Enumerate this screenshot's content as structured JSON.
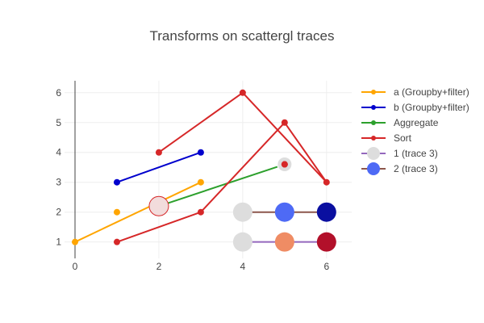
{
  "chart_data": {
    "type": "scatter",
    "title": "Transforms on scattergl traces",
    "xlabel": "",
    "ylabel": "",
    "xlim": [
      -0.25,
      6.6
    ],
    "ylim": [
      0.45,
      6.4
    ],
    "xticks": [
      0,
      2,
      4,
      6
    ],
    "yticks": [
      1,
      2,
      3,
      4,
      5,
      6
    ],
    "grid": true,
    "legend_position": "right",
    "series": [
      {
        "name": "a (Groupby+filter)",
        "mode": "lines+markers",
        "color": "#ffa500",
        "line": [
          {
            "x": 0,
            "y": 1
          },
          {
            "x": 3,
            "y": 3
          }
        ],
        "points": [
          {
            "x": 0,
            "y": 1
          },
          {
            "x": 1,
            "y": 2
          },
          {
            "x": 3,
            "y": 3
          }
        ]
      },
      {
        "name": "b (Groupby+filter)",
        "mode": "lines+markers",
        "color": "#0000cd",
        "line": [
          {
            "x": 1,
            "y": 3
          },
          {
            "x": 3,
            "y": 4
          }
        ],
        "points": [
          {
            "x": 1,
            "y": 3
          },
          {
            "x": 3,
            "y": 4
          }
        ]
      },
      {
        "name": "Aggregate",
        "mode": "lines+markers",
        "color": "#2ca02c",
        "line": [
          {
            "x": 2,
            "y": 2.2
          },
          {
            "x": 5,
            "y": 3.6
          }
        ],
        "points": [
          {
            "x": 2,
            "y": 2.2,
            "size": 24,
            "fill": "#f2dcdc",
            "stroke": "#d62728"
          },
          {
            "x": 5,
            "y": 3.6,
            "size": 18,
            "fill": "#dddddd",
            "stroke": "#ffffff"
          }
        ]
      },
      {
        "name": "Sort",
        "mode": "lines+markers",
        "color": "#d62728",
        "line": [
          {
            "x": 1,
            "y": 1
          },
          {
            "x": 3,
            "y": 2
          },
          {
            "x": 5,
            "y": 5
          },
          {
            "x": 6,
            "y": 3
          },
          {
            "x": 4,
            "y": 6
          },
          {
            "x": 2,
            "y": 4
          }
        ],
        "points": [
          {
            "x": 1,
            "y": 1
          },
          {
            "x": 3,
            "y": 2
          },
          {
            "x": 5,
            "y": 5
          },
          {
            "x": 6,
            "y": 3
          },
          {
            "x": 4,
            "y": 6
          },
          {
            "x": 2,
            "y": 4
          },
          {
            "x": 5,
            "y": 3.6
          }
        ]
      },
      {
        "name": "1 (trace 3)",
        "mode": "lines+markers",
        "color": "#9467bd",
        "line": [
          {
            "x": 4,
            "y": 1
          },
          {
            "x": 6,
            "y": 1
          }
        ],
        "points": [
          {
            "x": 4,
            "y": 1,
            "fill": "#dddddd"
          },
          {
            "x": 5,
            "y": 1,
            "fill": "#ef8c64"
          },
          {
            "x": 6,
            "y": 1,
            "fill": "#b2102a"
          }
        ]
      },
      {
        "name": "2 (trace 3)",
        "mode": "lines+markers",
        "color": "#8c564b",
        "line": [
          {
            "x": 4,
            "y": 2
          },
          {
            "x": 6,
            "y": 2
          }
        ],
        "points": [
          {
            "x": 4,
            "y": 2,
            "fill": "#dddddd"
          },
          {
            "x": 5,
            "y": 2,
            "fill": "#4e6af5"
          },
          {
            "x": 6,
            "y": 2,
            "fill": "#0a0fa0"
          }
        ]
      }
    ],
    "legend": [
      {
        "label": "a (Groupby+filter)",
        "line_color": "#ffa500",
        "marker_color": "#ffa500",
        "marker": "dot"
      },
      {
        "label": "b (Groupby+filter)",
        "line_color": "#0000cd",
        "marker_color": "#0000cd",
        "marker": "dot"
      },
      {
        "label": "Aggregate",
        "line_color": "#2ca02c",
        "marker_color": "#2ca02c",
        "marker": "dot"
      },
      {
        "label": "Sort",
        "line_color": "#d62728",
        "marker_color": "#d62728",
        "marker": "dot"
      },
      {
        "label": "1 (trace 3)",
        "line_color": "#9467bd",
        "marker_color": "#dddddd",
        "marker": "big"
      },
      {
        "label": "2 (trace 3)",
        "line_color": "#8c564b",
        "marker_color": "#4e6af5",
        "marker": "big"
      }
    ]
  }
}
